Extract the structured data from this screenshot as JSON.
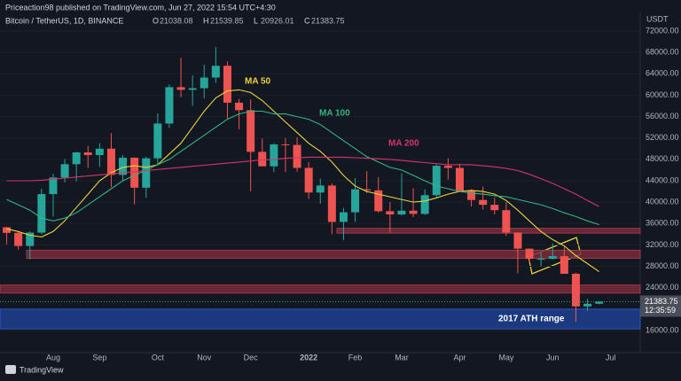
{
  "chart_data": {
    "type": "candlestick",
    "header": "Priceaction98 published on TradingView.com, Jun 27, 2022 15:54 UTC+4:30",
    "symbol": "Bitcoin / TetherUS, 1D, BINANCE",
    "ohlc": [
      {
        "label": "O",
        "value": 21038.08
      },
      {
        "label": "H",
        "value": 21539.85
      },
      {
        "label": "L",
        "value": 20926.01
      },
      {
        "label": "C",
        "value": 21383.75
      }
    ],
    "unit": "USDT",
    "last_price": 21383.75,
    "countdown": "12:35:59",
    "footer": "TradingView",
    "up_color": "#26a69a",
    "down_color": "#ef5350",
    "categories": [
      null,
      null,
      null,
      null,
      "Aug",
      null,
      null,
      null,
      "Sep",
      null,
      null,
      null,
      null,
      "Oct",
      null,
      null,
      null,
      "Nov",
      null,
      null,
      null,
      "Dec",
      null,
      null,
      null,
      null,
      "2022",
      null,
      null,
      null,
      "Feb",
      null,
      null,
      null,
      "Mar",
      null,
      null,
      null,
      null,
      "Apr",
      null,
      null,
      null,
      "May",
      null,
      null,
      null,
      "Jun",
      null,
      null,
      null,
      null,
      "Jul"
    ],
    "open": [
      35300,
      34250,
      31800,
      34300,
      41500,
      44600,
      47100,
      49300,
      48800,
      50000,
      45100,
      48300,
      42700,
      48200,
      54700,
      61500,
      61000,
      61300,
      63300,
      65500,
      58600,
      57200,
      49400,
      46700,
      50800,
      50700,
      46400,
      41800,
      43100,
      36300,
      38100,
      42400,
      42200,
      38300,
      37700,
      38400,
      37800,
      41300,
      46800,
      46400,
      42100,
      40400,
      39500,
      38500,
      34300,
      31300,
      29400,
      29400,
      29900,
      26600,
      20500,
      21000,
      null
    ],
    "high": [
      35400,
      34600,
      34500,
      42500,
      45300,
      48100,
      49400,
      50500,
      51000,
      52900,
      48800,
      48400,
      48500,
      56600,
      62000,
      67000,
      63700,
      65700,
      69000,
      66300,
      59300,
      59200,
      51900,
      51000,
      52000,
      52100,
      47500,
      44400,
      43500,
      38900,
      44500,
      45800,
      44700,
      40000,
      45400,
      42600,
      42400,
      47100,
      48200,
      47200,
      42400,
      42900,
      40800,
      40000,
      34400,
      31300,
      30600,
      32300,
      31600,
      26800,
      21900,
      21500,
      null
    ],
    "low": [
      32100,
      31100,
      29300,
      34000,
      37300,
      43700,
      43900,
      46400,
      46600,
      42800,
      44000,
      39600,
      40800,
      47000,
      53900,
      59600,
      58000,
      59400,
      62300,
      55600,
      53600,
      42000,
      46800,
      45600,
      45600,
      45700,
      40600,
      39700,
      34000,
      32900,
      36300,
      41700,
      38000,
      34300,
      37500,
      37200,
      37600,
      40900,
      44200,
      42100,
      39200,
      38600,
      37700,
      33700,
      26700,
      28600,
      28000,
      29300,
      26600,
      17600,
      19700,
      20900,
      null
    ],
    "close": [
      34250,
      31800,
      34300,
      41500,
      44600,
      47100,
      49300,
      48800,
      50000,
      45100,
      48300,
      42700,
      48200,
      54700,
      61500,
      61000,
      61300,
      63300,
      65500,
      58600,
      57200,
      49400,
      46700,
      50800,
      50700,
      46400,
      41800,
      43100,
      36300,
      38100,
      42400,
      42200,
      38300,
      37700,
      38400,
      37800,
      41300,
      46800,
      46400,
      42100,
      40400,
      39500,
      38500,
      34300,
      31300,
      29400,
      29400,
      29900,
      26600,
      20500,
      21000,
      21400,
      null
    ],
    "series": [
      {
        "name": "MA 50",
        "color": "#e8d43a",
        "values": [
          35000,
          34500,
          33800,
          33500,
          34500,
          36500,
          39000,
          41500,
          44000,
          45500,
          46500,
          46800,
          46500,
          47000,
          49000,
          51000,
          54000,
          57000,
          59500,
          60800,
          61000,
          60500,
          59000,
          57000,
          55000,
          53000,
          51000,
          49500,
          47500,
          45000,
          43000,
          42000,
          41500,
          41000,
          40500,
          40000,
          40200,
          40800,
          41500,
          42000,
          42200,
          42000,
          41500,
          40300,
          38500,
          36500,
          34500,
          33000,
          31800,
          30000,
          28500,
          27000,
          null
        ]
      },
      {
        "name": "MA 100",
        "color": "#2fb67f",
        "values": [
          40500,
          39500,
          38500,
          37000,
          36500,
          37000,
          38000,
          39500,
          41000,
          42500,
          44000,
          45000,
          46000,
          47000,
          48000,
          49500,
          51000,
          52500,
          54000,
          55500,
          56500,
          57000,
          57000,
          56500,
          56500,
          56000,
          55500,
          54500,
          53000,
          51500,
          50000,
          48500,
          47500,
          46500,
          46000,
          45000,
          44000,
          43000,
          42500,
          42000,
          41700,
          41500,
          41200,
          41000,
          40500,
          40000,
          39500,
          38800,
          38000,
          37300,
          36500,
          35800,
          null
        ]
      },
      {
        "name": "MA 200",
        "color": "#d6336c",
        "values": [
          44000,
          44000,
          44000,
          44100,
          44300,
          44500,
          44700,
          44900,
          45100,
          45300,
          45500,
          45700,
          45900,
          46100,
          46300,
          46500,
          46700,
          46900,
          47100,
          47300,
          47500,
          47700,
          47900,
          48000,
          48200,
          48300,
          48400,
          48400,
          48400,
          48400,
          48300,
          48200,
          48100,
          48000,
          47800,
          47600,
          47400,
          47200,
          47000,
          47000,
          47000,
          46800,
          46600,
          46300,
          45900,
          45200,
          44400,
          43500,
          42500,
          41500,
          40300,
          39200,
          null
        ]
      }
    ],
    "zones": [
      {
        "low": 34200,
        "high": 35100,
        "color": "#7a2c3a"
      },
      {
        "low": 29500,
        "high": 31000,
        "color": "#7a2c3a"
      },
      {
        "low": 23000,
        "high": 24500,
        "color": "#7a2c3a"
      },
      {
        "low": 16300,
        "high": 20000,
        "color": "#1f3f8f",
        "label": "2017 ATH range"
      }
    ],
    "ylim": [
      12000,
      75500
    ],
    "yticks": [
      {
        "value": 16000,
        "label": "16000.00"
      },
      {
        "value": 20000,
        "label": "20000.00"
      },
      {
        "value": 24000,
        "label": "24000.00"
      },
      {
        "value": 28000,
        "label": "28000.00"
      },
      {
        "value": 32000,
        "label": "32000.00"
      },
      {
        "value": 36000,
        "label": "36000.00"
      },
      {
        "value": 40000,
        "label": "40000.00"
      },
      {
        "value": 44000,
        "label": "44000.00"
      },
      {
        "value": 48000,
        "label": "48000.00"
      },
      {
        "value": 52000,
        "label": "52000.00"
      },
      {
        "value": 56000,
        "label": "56000.00"
      },
      {
        "value": 60000,
        "label": "60000.00"
      },
      {
        "value": 64000,
        "label": "64000.00"
      },
      {
        "value": 68000,
        "label": "68000.00"
      },
      {
        "value": 72000,
        "label": "72000.00"
      }
    ]
  }
}
